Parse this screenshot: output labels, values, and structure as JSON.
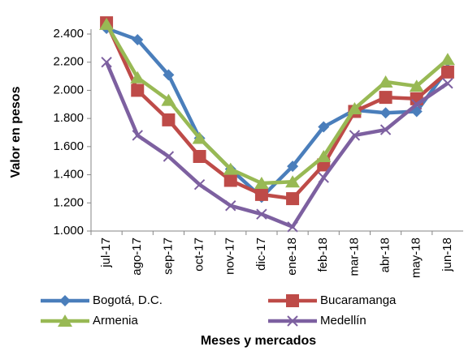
{
  "chart_data": {
    "type": "line",
    "x_label": "Meses y mercados",
    "y_label": "Valor en pesos",
    "categories": [
      "jul-17",
      "ago-17",
      "sep-17",
      "oct-17",
      "nov-17",
      "dic-17",
      "ene-18",
      "feb-18",
      "mar-18",
      "abr-18",
      "may-18",
      "jun-18"
    ],
    "series": [
      {
        "name": "Bogotá, D.C.",
        "color": "#4a7ebb",
        "marker": "diamond",
        "values": [
          2440,
          2360,
          2110,
          1660,
          1440,
          1240,
          1460,
          1740,
          1860,
          1840,
          1850,
          2150
        ]
      },
      {
        "name": "Bucaramanga",
        "color": "#be4b48",
        "marker": "square",
        "values": [
          2480,
          2000,
          1790,
          1530,
          1360,
          1260,
          1230,
          1470,
          1850,
          1950,
          1940,
          2130
        ]
      },
      {
        "name": "Armenia",
        "color": "#98b954",
        "marker": "triangle",
        "values": [
          2470,
          2090,
          1930,
          1660,
          1440,
          1340,
          1350,
          1530,
          1870,
          2060,
          2030,
          2220
        ]
      },
      {
        "name": "Medellín",
        "color": "#7d60a0",
        "marker": "x",
        "values": [
          2200,
          1680,
          1530,
          1330,
          1180,
          1120,
          1030,
          1380,
          1680,
          1720,
          1900,
          2050
        ]
      }
    ],
    "ylim": [
      1000,
      2400
    ],
    "yticks": [
      {
        "value": 1000,
        "label": "1.000"
      },
      {
        "value": 1200,
        "label": "1.200"
      },
      {
        "value": 1400,
        "label": "1.400"
      },
      {
        "value": 1600,
        "label": "1.600"
      },
      {
        "value": 1800,
        "label": "1.800"
      },
      {
        "value": 2000,
        "label": "2.000"
      },
      {
        "value": 2200,
        "label": "2.200"
      },
      {
        "value": 2400,
        "label": "2.400"
      }
    ],
    "legend": "bottom"
  }
}
